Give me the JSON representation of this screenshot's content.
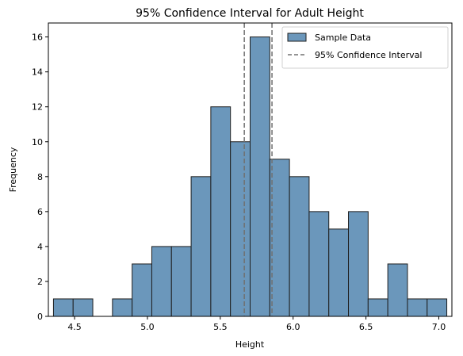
{
  "chart_data": {
    "type": "bar",
    "subtype": "histogram",
    "title": "95% Confidence Interval for Adult Height",
    "xlabel": "Height",
    "ylabel": "Frequency",
    "xlim": [
      4.32,
      7.09
    ],
    "ylim": [
      0,
      16.8
    ],
    "xticks": [
      "4.5",
      "5.0",
      "5.5",
      "6.0",
      "6.5",
      "7.0"
    ],
    "xtick_values": [
      4.5,
      5.0,
      5.5,
      6.0,
      6.5,
      7.0
    ],
    "yticks": [
      "0",
      "2",
      "4",
      "6",
      "8",
      "10",
      "12",
      "14",
      "16"
    ],
    "ytick_values": [
      0,
      2,
      4,
      6,
      8,
      10,
      12,
      14,
      16
    ],
    "bins": [
      {
        "x0": 4.355,
        "x1": 4.49,
        "count": 1
      },
      {
        "x0": 4.49,
        "x1": 4.625,
        "count": 1
      },
      {
        "x0": 4.625,
        "x1": 4.76,
        "count": 0
      },
      {
        "x0": 4.76,
        "x1": 4.895,
        "count": 1
      },
      {
        "x0": 4.895,
        "x1": 5.03,
        "count": 3
      },
      {
        "x0": 5.03,
        "x1": 5.165,
        "count": 4
      },
      {
        "x0": 5.165,
        "x1": 5.3,
        "count": 4
      },
      {
        "x0": 5.3,
        "x1": 5.435,
        "count": 8
      },
      {
        "x0": 5.435,
        "x1": 5.57,
        "count": 12
      },
      {
        "x0": 5.57,
        "x1": 5.705,
        "count": 10
      },
      {
        "x0": 5.705,
        "x1": 5.84,
        "count": 16
      },
      {
        "x0": 5.84,
        "x1": 5.975,
        "count": 9
      },
      {
        "x0": 5.975,
        "x1": 6.11,
        "count": 8
      },
      {
        "x0": 6.11,
        "x1": 6.245,
        "count": 6
      },
      {
        "x0": 6.245,
        "x1": 6.38,
        "count": 5
      },
      {
        "x0": 6.38,
        "x1": 6.515,
        "count": 6
      },
      {
        "x0": 6.515,
        "x1": 6.65,
        "count": 1
      },
      {
        "x0": 6.65,
        "x1": 6.785,
        "count": 3
      },
      {
        "x0": 6.785,
        "x1": 6.92,
        "count": 1
      },
      {
        "x0": 6.92,
        "x1": 7.055,
        "count": 1
      }
    ],
    "confidence_interval": [
      5.665,
      5.855
    ],
    "series": [
      {
        "name": "Sample Data",
        "kind": "histogram",
        "color": "#4e7fa8"
      },
      {
        "name": "95% Confidence Interval",
        "kind": "dashed-vertical-lines",
        "color": "#707070"
      }
    ],
    "legend": {
      "position": "upper-right"
    },
    "grid": false,
    "colors": {
      "bar_fill": "#6b97bb",
      "bar_edge": "#1f1f1f",
      "ci_line": "#707070"
    }
  }
}
